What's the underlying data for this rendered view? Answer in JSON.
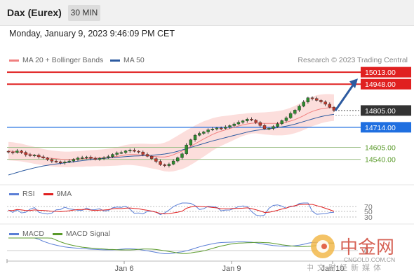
{
  "header": {
    "title": "Dax (Eurex)",
    "timeframe": "30 MIN"
  },
  "date_line": "Monday, January 9, 2023 9:46:09 PM CET",
  "legend": {
    "ma20": {
      "label": "MA 20 + Bollinger Bands",
      "color": "#f08080"
    },
    "ma50": {
      "label": "MA 50",
      "color": "#2c5aa0"
    },
    "research": "Research © 2023 Trading Central"
  },
  "rsi_legend": {
    "rsi": "RSI",
    "ma9": "9MA"
  },
  "macd_legend": {
    "macd": "MACD",
    "signal": "MACD Signal"
  },
  "watermark": {
    "logo_text": "中金网",
    "domain": "CNGOLD.COM.CN",
    "subtitle": "中文财经新媒体"
  },
  "chart_data": {
    "type": "candlestick",
    "x_ticks": [
      "Jan 6",
      "Jan 9",
      "Jan 10"
    ],
    "y_range": [
      14440,
      15050
    ],
    "levels": [
      {
        "label": "15013.00",
        "value": 15013,
        "type": "resistance",
        "color": "#e02020"
      },
      {
        "label": "14948.00",
        "value": 14948,
        "type": "resistance",
        "color": "#e02020"
      },
      {
        "label": "14805.00",
        "value": 14805,
        "type": "last",
        "color": "#333333"
      },
      {
        "label": "14714.00",
        "value": 14714,
        "type": "pivot",
        "color": "#1f6fe0"
      },
      {
        "label": "14605.00",
        "value": 14605,
        "type": "support",
        "color": "#5a9a2a"
      },
      {
        "label": "14540.00",
        "value": 14540,
        "type": "support",
        "color": "#5a9a2a"
      }
    ],
    "closes": [
      14580,
      14577,
      14586,
      14578,
      14565,
      14560,
      14563,
      14554,
      14547,
      14539,
      14530,
      14527,
      14521,
      14526,
      14531,
      14540,
      14547,
      14549,
      14553,
      14545,
      14540,
      14546,
      14549,
      14555,
      14567,
      14575,
      14577,
      14586,
      14590,
      14584,
      14580,
      14567,
      14557,
      14544,
      14529,
      14511,
      14506,
      14514,
      14531,
      14549,
      14570,
      14618,
      14646,
      14671,
      14681,
      14689,
      14700,
      14705,
      14710,
      14708,
      14715,
      14723,
      14732,
      14741,
      14749,
      14758,
      14753,
      14740,
      14724,
      14706,
      14708,
      14718,
      14733,
      14750,
      14765,
      14789,
      14807,
      14829,
      14851,
      14874,
      14870,
      14860,
      14852,
      14839,
      14823,
      14805
    ],
    "ma20": [
      14585,
      14583,
      14580,
      14577,
      14572,
      14567,
      14562,
      14557,
      14552,
      14548,
      14545,
      14543,
      14541,
      14540,
      14540,
      14541,
      14542,
      14543,
      14545,
      14546,
      14547,
      14548,
      14549,
      14551,
      14553,
      14556,
      14560,
      14564,
      14566,
      14566,
      14565,
      14563,
      14560,
      14557,
      14555,
      14553,
      14553,
      14557,
      14565,
      14575,
      14585,
      14597,
      14610,
      14624,
      14638,
      14651,
      14663,
      14675,
      14685,
      14693,
      14700,
      14707,
      14714,
      14721,
      14727,
      14732,
      14736,
      14737,
      14736,
      14735,
      14735,
      14735,
      14736,
      14738,
      14742,
      14748,
      14756,
      14766,
      14777,
      14790,
      14800,
      14808,
      14814,
      14818,
      14820,
      14821
    ],
    "ma50": [
      14455,
      14462,
      14469,
      14476,
      14482,
      14488,
      14494,
      14499,
      14504,
      14508,
      14512,
      14515,
      14518,
      14521,
      14524,
      14527,
      14530,
      14533,
      14536,
      14539,
      14541,
      14543,
      14545,
      14547,
      14549,
      14551,
      14553,
      14555,
      14557,
      14558,
      14559,
      14560,
      14561,
      14562,
      14564,
      14566,
      14569,
      14573,
      14578,
      14584,
      14591,
      14598,
      14605,
      14612,
      14619,
      14626,
      14633,
      14640,
      14646,
      14652,
      14658,
      14664,
      14670,
      14676,
      14682,
      14688,
      14693,
      14697,
      14700,
      14703,
      14706,
      14709,
      14712,
      14716,
      14720,
      14725,
      14731,
      14738,
      14745,
      14752,
      14759,
      14766,
      14772,
      14777,
      14781,
      14784
    ],
    "bollinger_width": [
      50,
      50,
      49,
      48,
      47,
      46,
      46,
      45,
      44,
      44,
      43,
      43,
      42,
      42,
      42,
      42,
      42,
      43,
      43,
      44,
      44,
      45,
      46,
      47,
      48,
      50,
      52,
      54,
      56,
      58,
      60,
      62,
      64,
      66,
      68,
      72,
      78,
      84,
      90,
      94,
      98,
      100,
      100,
      100,
      98,
      96,
      92,
      88,
      84,
      80,
      76,
      72,
      68,
      64,
      60,
      58,
      56,
      56,
      58,
      60,
      62,
      64,
      66,
      68,
      70,
      72,
      74,
      76,
      78,
      80,
      80,
      80,
      78,
      76,
      74,
      72
    ],
    "rsi": {
      "levels": [
        "70",
        "50",
        "30"
      ]
    },
    "projection": {
      "from": 14805,
      "to": 14948
    }
  }
}
